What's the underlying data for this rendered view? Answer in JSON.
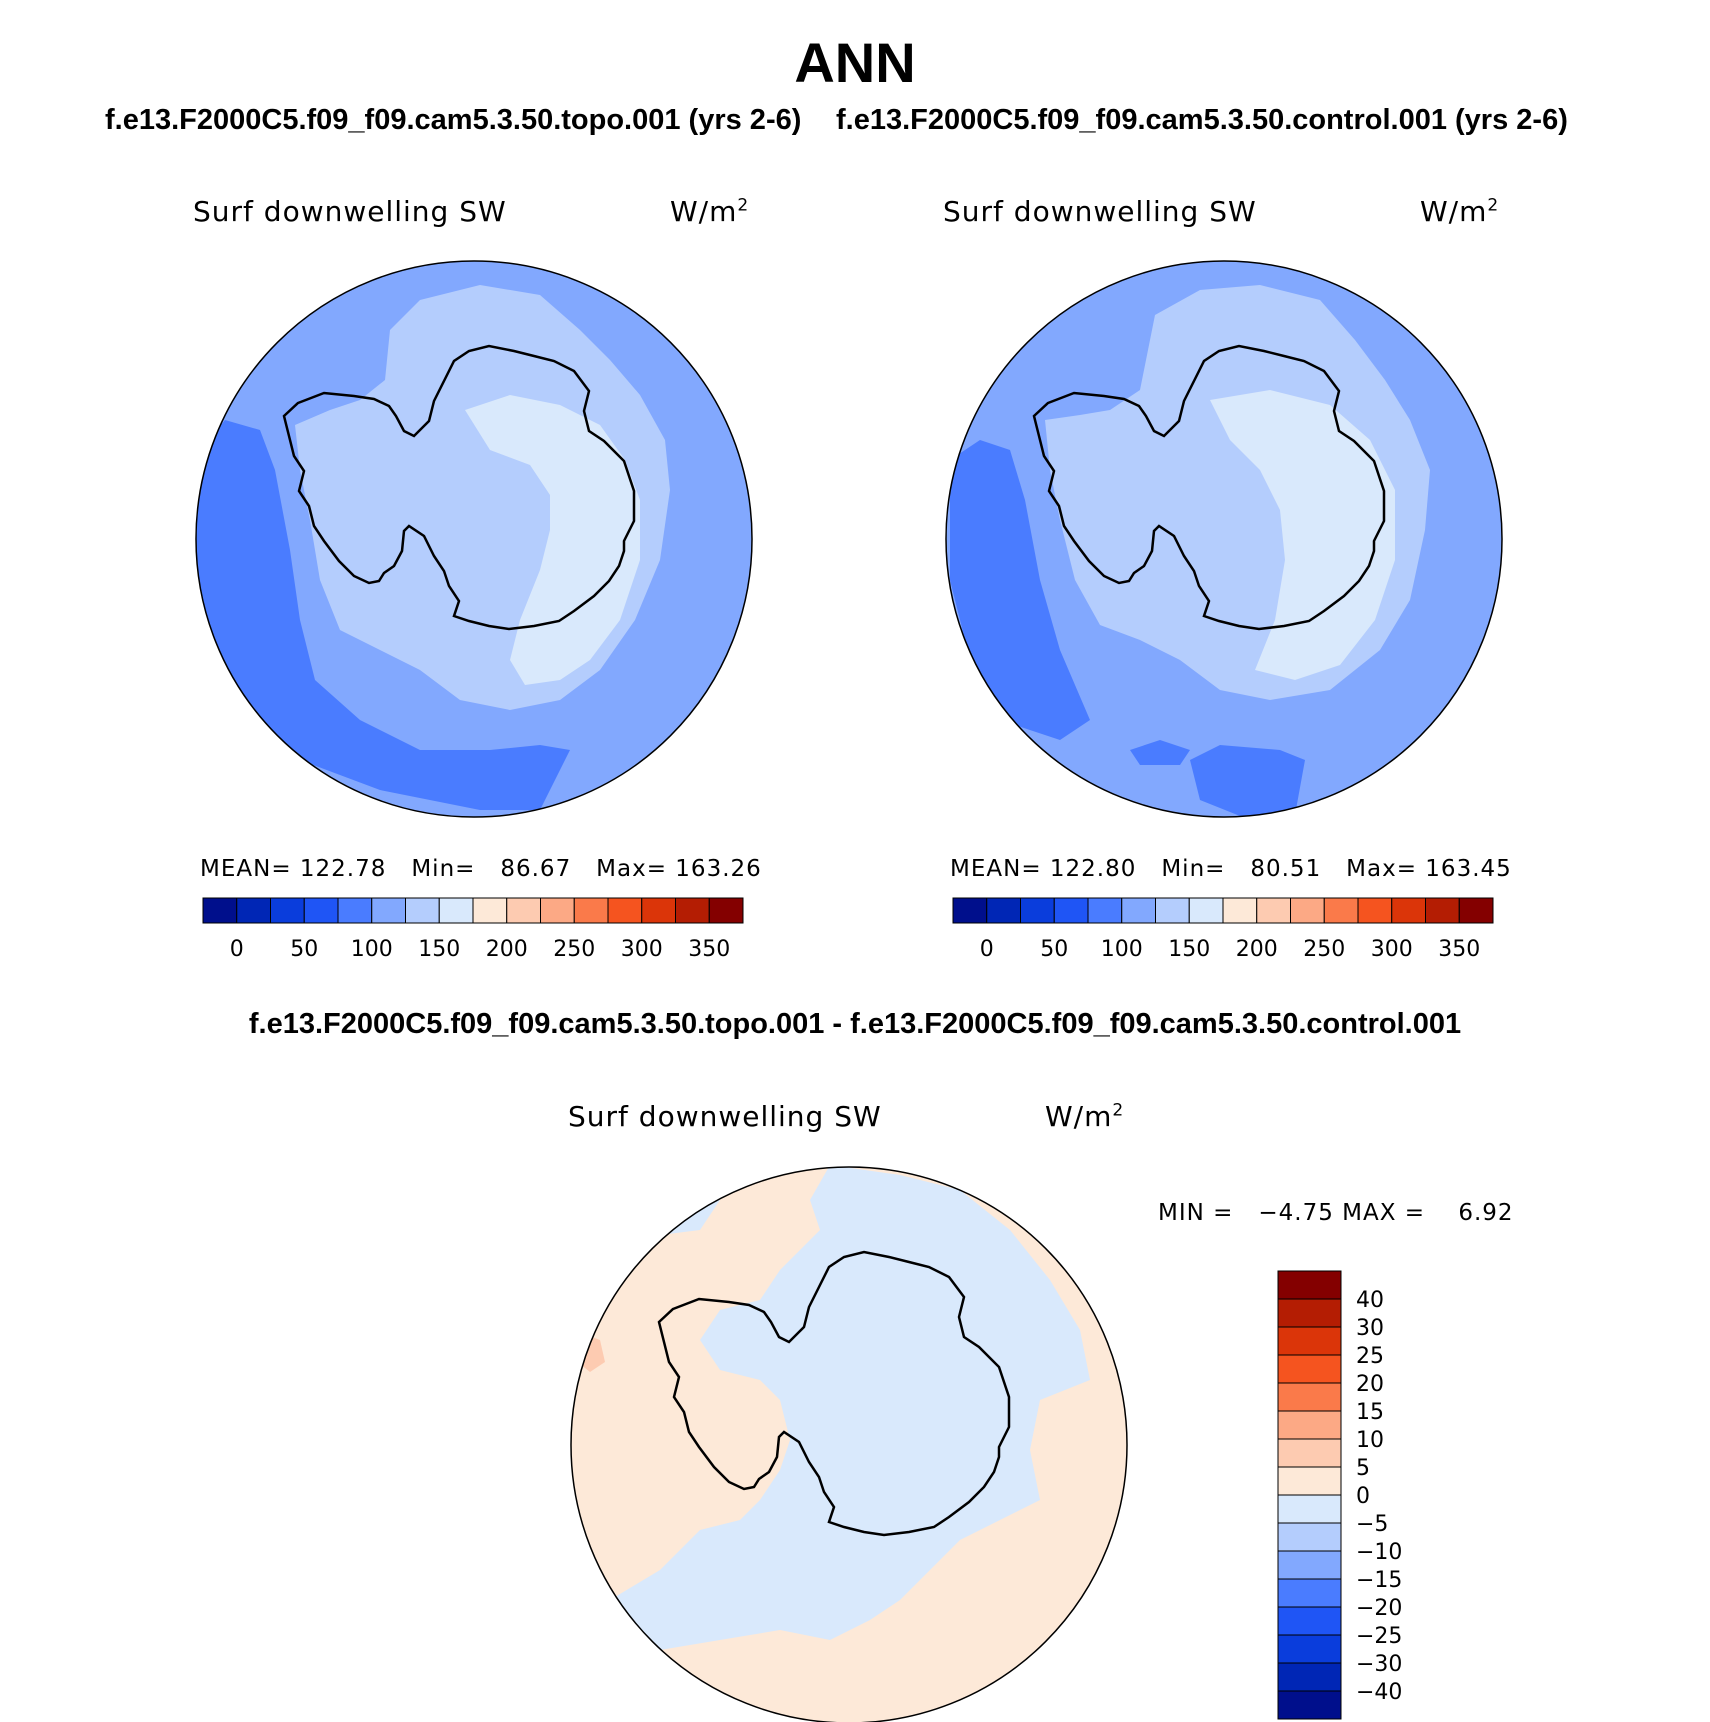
{
  "title": "ANN",
  "panels": [
    {
      "case_title": "f.e13.F2000C5.f09_f09.cam5.3.50.topo.001 (yrs 2-6)",
      "variable": "Surf downwelling SW",
      "units_base": "W/m",
      "units_exp": "2",
      "stats": {
        "mean_label": "MEAN=",
        "mean": "122.78",
        "min_label": "Min=",
        "min": "86.67",
        "max_label": "Max=",
        "max": "163.26"
      }
    },
    {
      "case_title": "f.e13.F2000C5.f09_f09.cam5.3.50.control.001 (yrs 2-6)",
      "variable": "Surf downwelling SW",
      "units_base": "W/m",
      "units_exp": "2",
      "stats": {
        "mean_label": "MEAN=",
        "mean": "122.80",
        "min_label": "Min=",
        "min": "80.51",
        "max_label": "Max=",
        "max": "163.45"
      }
    }
  ],
  "diff_panel": {
    "title": "f.e13.F2000C5.f09_f09.cam5.3.50.topo.001 - f.e13.F2000C5.f09_f09.cam5.3.50.control.001",
    "variable": "Surf downwelling SW",
    "units_base": "W/m",
    "units_exp": "2",
    "stats": {
      "min_label": "MIN =",
      "min": "−4.75",
      "max_label": "MAX =",
      "max": "6.92"
    }
  },
  "colorbar_abs": {
    "tick_labels": [
      "0",
      "50",
      "100",
      "150",
      "200",
      "250",
      "300",
      "350"
    ],
    "colors": [
      "#000f8c",
      "#0026b5",
      "#0a3ddc",
      "#1f55f5",
      "#4a7cff",
      "#82a8fe",
      "#b4cdfd",
      "#d9e9fc",
      "#fde9d8",
      "#fdcbb1",
      "#fca985",
      "#fa7a4a",
      "#f5541f",
      "#db3509",
      "#b41d03",
      "#840000"
    ]
  },
  "colorbar_diff": {
    "tick_labels": [
      "40",
      "30",
      "25",
      "20",
      "15",
      "10",
      "5",
      "0",
      "−5",
      "−10",
      "−15",
      "−20",
      "−25",
      "−30",
      "−40"
    ],
    "colors_top_to_bottom": [
      "#840000",
      "#b41d03",
      "#db3509",
      "#f5541f",
      "#fa7a4a",
      "#fca985",
      "#fdcbb1",
      "#fde9d8",
      "#d9e9fc",
      "#b4cdfd",
      "#82a8fe",
      "#4a7cff",
      "#1f55f5",
      "#0a3ddc",
      "#0026b5",
      "#000f8c"
    ]
  },
  "map_colors": {
    "ocean": "#82a8fe",
    "low": "#4a7cff",
    "mid": "#b4cdfd",
    "high": "#d9e9fc",
    "diff_pos": "#fde9d8",
    "diff_neg": "#d9e9fc",
    "diff_pos2": "#fdcbb1"
  }
}
